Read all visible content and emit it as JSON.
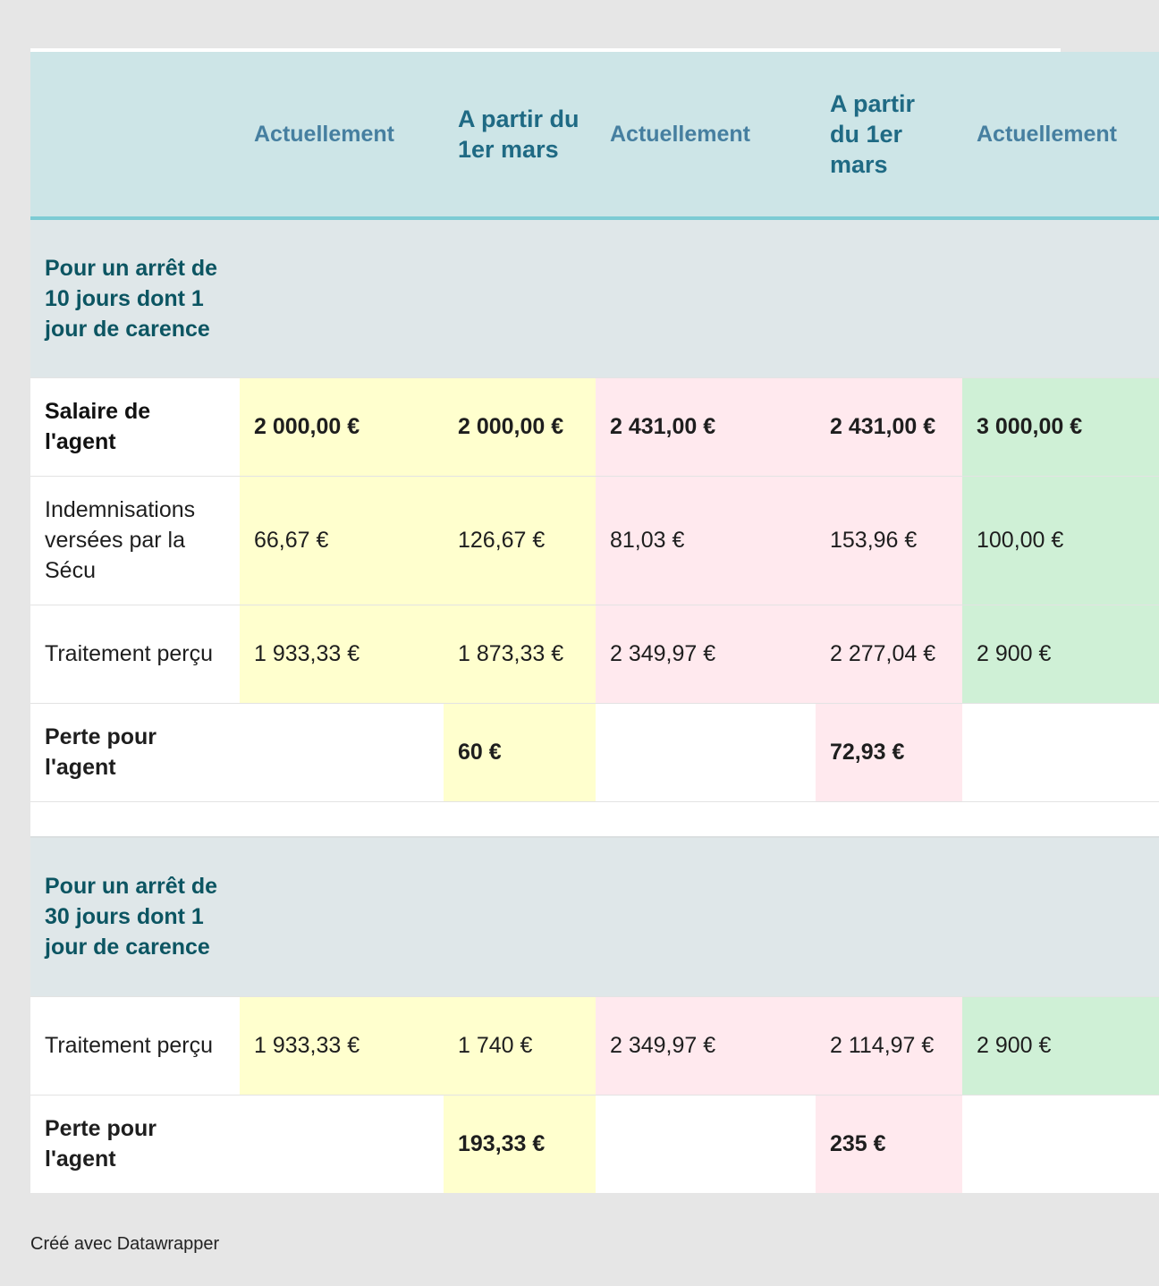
{
  "table": {
    "header": [
      "",
      "Actuellement",
      "A partir du 1er mars",
      "Actuellement",
      "A partir du 1er mars",
      "Actuellement"
    ],
    "section1": {
      "title": "Pour un arrêt de 10 jours dont 1 jour de carence",
      "salaire": {
        "label": "Salaire de l'agent",
        "values": [
          "2 000,00 €",
          "2 000,00 €",
          "2 431,00 €",
          "2 431,00 €",
          "3 000,00 €"
        ]
      },
      "indemnisations": {
        "label": "Indemnisations versées par la Sécu",
        "values": [
          "66,67 €",
          "126,67 €",
          "81,03 €",
          "153,96 €",
          "100,00 €"
        ]
      },
      "traitement": {
        "label": "Traitement perçu",
        "values": [
          "1 933,33 €",
          "1 873,33 €",
          "2 349,97 €",
          "2 277,04 €",
          "2 900 €"
        ]
      },
      "perte": {
        "label": "Perte pour l'agent",
        "values": [
          "",
          "60 €",
          "",
          "72,93 €",
          ""
        ]
      }
    },
    "section2": {
      "title": "Pour un arrêt de 30 jours dont 1 jour de carence",
      "traitement": {
        "label": "Traitement perçu",
        "values": [
          "1 933,33 €",
          "1 740 €",
          "2 349,97 €",
          "2 114,97 €",
          "2 900 €"
        ]
      },
      "perte": {
        "label": "Perte pour l'agent",
        "values": [
          "",
          "193,33 €",
          "",
          "235 €",
          ""
        ]
      }
    }
  },
  "colors": {
    "yellow": "#ffffce",
    "pink": "#ffe9ee",
    "green": "#cff0d6",
    "loss": "#eb2b73"
  },
  "footer": "Créé avec Datawrapper"
}
